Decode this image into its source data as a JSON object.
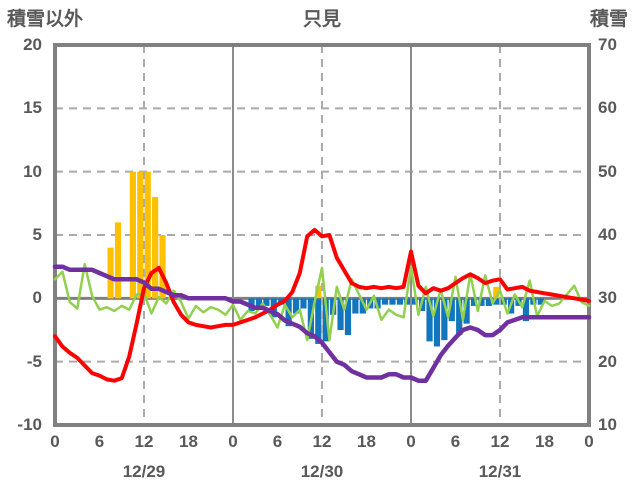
{
  "header": {
    "left_axis_title": "積雪以外",
    "title": "只見",
    "right_axis_title": "積雪"
  },
  "colors": {
    "text": "#595959",
    "frame": "#808080",
    "grid_solid": "#8C8C8C",
    "grid_dashed": "#ABABAB",
    "zero_line": "#808080",
    "orange_bars": "#FFC000",
    "blue_bars": "#1176BD",
    "red_line": "#FF0000",
    "green_line": "#92D050",
    "purple_line": "#7030A0"
  },
  "chart_data": {
    "type": "bar",
    "subtype": "combo-bar-line-dual-axis",
    "title": "只見",
    "xlabel": "",
    "ylabel_left": "積雪以外",
    "ylabel_right": "積雪",
    "left_axis": {
      "min": -10,
      "max": 20,
      "ticks": [
        20,
        15,
        10,
        5,
        0,
        -5,
        -10
      ]
    },
    "right_axis": {
      "min": 10,
      "max": 70,
      "ticks": [
        70,
        60,
        50,
        40,
        30,
        20,
        10
      ]
    },
    "x_axis": {
      "hours_total": 72,
      "tick_hours": [
        0,
        6,
        12,
        18,
        24,
        30,
        36,
        42,
        48,
        54,
        60,
        66,
        72
      ],
      "tick_labels": [
        "0",
        "6",
        "12",
        "18",
        "0",
        "6",
        "12",
        "18",
        "0",
        "6",
        "12",
        "18",
        "0"
      ],
      "day_labels": [
        {
          "label": "12/29",
          "hour": 12
        },
        {
          "label": "12/30",
          "hour": 36
        },
        {
          "label": "12/31",
          "hour": 60
        }
      ],
      "solid_gridline_hours": [
        24,
        48
      ],
      "dashed_gridline_hours": [
        12,
        36,
        60
      ]
    },
    "grid": {
      "horizontal_dashed_values": [
        15,
        10,
        5,
        -5
      ],
      "zero_line": true
    },
    "legend": "none",
    "series": [
      {
        "name": "orange-bars",
        "type": "bar",
        "axis": "left",
        "color": "#FFC000",
        "values": [
          0,
          0,
          0,
          0,
          0,
          0,
          0,
          4,
          6,
          0,
          10,
          10,
          10,
          8,
          5,
          0,
          0,
          0,
          0,
          0,
          0,
          0,
          0,
          0,
          0,
          0,
          0,
          0,
          0,
          0,
          0,
          0,
          0,
          0,
          0,
          1,
          0,
          0,
          0,
          0,
          0,
          0,
          0,
          0,
          0,
          0,
          0,
          0,
          0,
          0,
          0,
          0,
          0,
          0,
          0,
          0,
          0,
          0,
          0,
          0.9,
          0,
          0,
          0,
          0,
          0,
          0,
          0,
          0,
          0,
          0,
          0,
          0
        ]
      },
      {
        "name": "blue-bars",
        "type": "bar",
        "axis": "left",
        "color": "#1176BD",
        "values": [
          0,
          0,
          0,
          0,
          0,
          0,
          0,
          0,
          0,
          0,
          0,
          0,
          0,
          0,
          0,
          0,
          0,
          0,
          0,
          0,
          0,
          0,
          0,
          0,
          0,
          0,
          -1.0,
          -0.9,
          -0.6,
          -1.5,
          -0.5,
          -2.2,
          -1.2,
          -0.8,
          -3.2,
          -3.6,
          -3.4,
          -1.3,
          -2.5,
          -2.9,
          -1.2,
          -1.2,
          -0.8,
          -0.8,
          -0.5,
          -0.5,
          -0.5,
          -0.5,
          -0.5,
          -1.0,
          -3.4,
          -3.8,
          -3.3,
          -1.8,
          -2.9,
          -2.0,
          -0.6,
          -0.6,
          -0.6,
          -0.5,
          -0.5,
          -1.2,
          -0.6,
          -1.8,
          -0.5,
          -0.5,
          0,
          0,
          0,
          0,
          0,
          0
        ]
      },
      {
        "name": "green-line",
        "type": "line",
        "axis": "left",
        "color": "#92D050",
        "stroke_width": 2.5,
        "values": [
          1.5,
          2.1,
          -0.3,
          -0.8,
          2.7,
          0.2,
          -0.9,
          -0.7,
          -1.0,
          -0.6,
          -0.9,
          0.3,
          0.4,
          -1.2,
          0.1,
          -0.4,
          0.6,
          -0.3,
          -1.6,
          -0.6,
          -1.1,
          -0.7,
          -0.9,
          -1.3,
          -0.5,
          -1.7,
          -1.0,
          -1.2,
          -0.4,
          -1.3,
          -2.3,
          -0.5,
          -1.5,
          -0.9,
          -3.3,
          -0.3,
          2.4,
          -3.3,
          0.9,
          -0.9,
          1.5,
          0.3,
          -0.9,
          0.2,
          -1.7,
          -0.9,
          -1.3,
          -1.5,
          2.5,
          -1.3,
          0.9,
          -1.4,
          0.7,
          -1.5,
          1.7,
          -1.7,
          1.9,
          -1.0,
          1.8,
          -0.4,
          0.6,
          -1.2,
          0.3,
          -0.7,
          1.4,
          -1.4,
          -0.2,
          -0.6,
          -0.4,
          0.3,
          1.0,
          -0.3,
          -0.6
        ]
      },
      {
        "name": "red-line",
        "type": "line",
        "axis": "left",
        "color": "#FF0000",
        "stroke_width": 4,
        "values": [
          -3.0,
          -3.8,
          -4.3,
          -4.7,
          -5.3,
          -5.9,
          -6.1,
          -6.4,
          -6.5,
          -6.3,
          -4.6,
          -2.0,
          0.8,
          2.0,
          2.4,
          1.2,
          -0.3,
          -1.3,
          -1.9,
          -2.1,
          -2.2,
          -2.3,
          -2.2,
          -2.1,
          -2.1,
          -1.9,
          -1.7,
          -1.5,
          -1.2,
          -0.9,
          -0.5,
          -0.2,
          0.5,
          2.0,
          4.9,
          5.4,
          4.9,
          5.0,
          3.2,
          2.2,
          1.2,
          0.9,
          0.8,
          0.9,
          0.8,
          0.9,
          0.8,
          0.9,
          3.7,
          1.0,
          0.4,
          0.8,
          0.6,
          0.8,
          1.2,
          1.6,
          1.9,
          1.6,
          1.2,
          1.4,
          1.5,
          0.7,
          0.8,
          0.9,
          0.6,
          0.5,
          0.4,
          0.3,
          0.2,
          0.1,
          0.0,
          -0.1,
          -0.2
        ]
      },
      {
        "name": "purple-line",
        "type": "line",
        "axis": "right",
        "color": "#7030A0",
        "stroke_width": 4.5,
        "values": [
          35,
          35,
          34.5,
          34.5,
          34.5,
          34.5,
          34,
          33.5,
          33,
          33,
          33,
          33,
          32.5,
          31.5,
          31.5,
          31,
          30.5,
          30.5,
          30,
          30,
          30,
          30,
          30,
          30,
          29.5,
          29.5,
          29,
          28.5,
          28.5,
          28,
          27.5,
          26.5,
          26,
          25.5,
          24.5,
          24,
          23,
          21.5,
          20,
          19.5,
          18.5,
          18,
          17.5,
          17.5,
          17.5,
          18,
          18,
          17.5,
          17.5,
          17,
          17,
          19,
          21,
          22.5,
          23.8,
          25,
          25.4,
          25,
          24.2,
          24.2,
          25,
          26.2,
          26.6,
          27,
          27,
          27,
          27,
          27,
          27,
          27,
          27,
          27,
          27
        ]
      }
    ]
  }
}
